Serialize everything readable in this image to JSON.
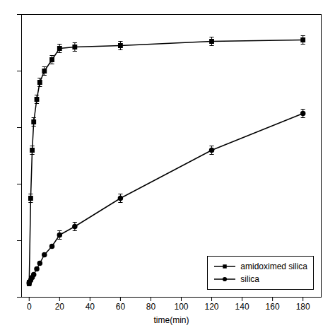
{
  "chart_data": {
    "type": "line",
    "xlabel": "time(min)",
    "x": [
      0,
      1,
      2,
      3,
      5,
      7,
      10,
      15,
      20,
      30,
      60,
      120,
      180
    ],
    "series": [
      {
        "name": "amidoximed silica",
        "color": "#000000",
        "marker": "square",
        "line_style": "solid",
        "values": [
          5,
          35,
          52,
          62,
          70,
          76,
          80,
          84,
          88,
          88.5,
          89,
          90.5,
          91
        ],
        "yerr": [
          1.0,
          1.5,
          1.5,
          1.5,
          1.5,
          1.5,
          1.5,
          1.5,
          1.5,
          1.5,
          1.5,
          1.5,
          1.5
        ]
      },
      {
        "name": "silica",
        "color": "#000000",
        "marker": "circle",
        "line_style": "solid",
        "values": [
          5,
          6,
          7,
          8,
          10,
          12,
          15,
          18,
          22,
          25,
          35,
          52,
          65
        ],
        "yerr": [
          0,
          0,
          0,
          0,
          0,
          0,
          0,
          0,
          1.5,
          1.5,
          1.5,
          1.5,
          1.5
        ]
      }
    ],
    "xlim": [
      -5,
      192
    ],
    "ylim": [
      0,
      100
    ],
    "xticks": [
      0,
      20,
      40,
      60,
      80,
      100,
      120,
      140,
      160,
      180
    ],
    "yticks": [
      0,
      20,
      40,
      60,
      80,
      100
    ],
    "tick_labels": "x",
    "legend": "lower right"
  }
}
